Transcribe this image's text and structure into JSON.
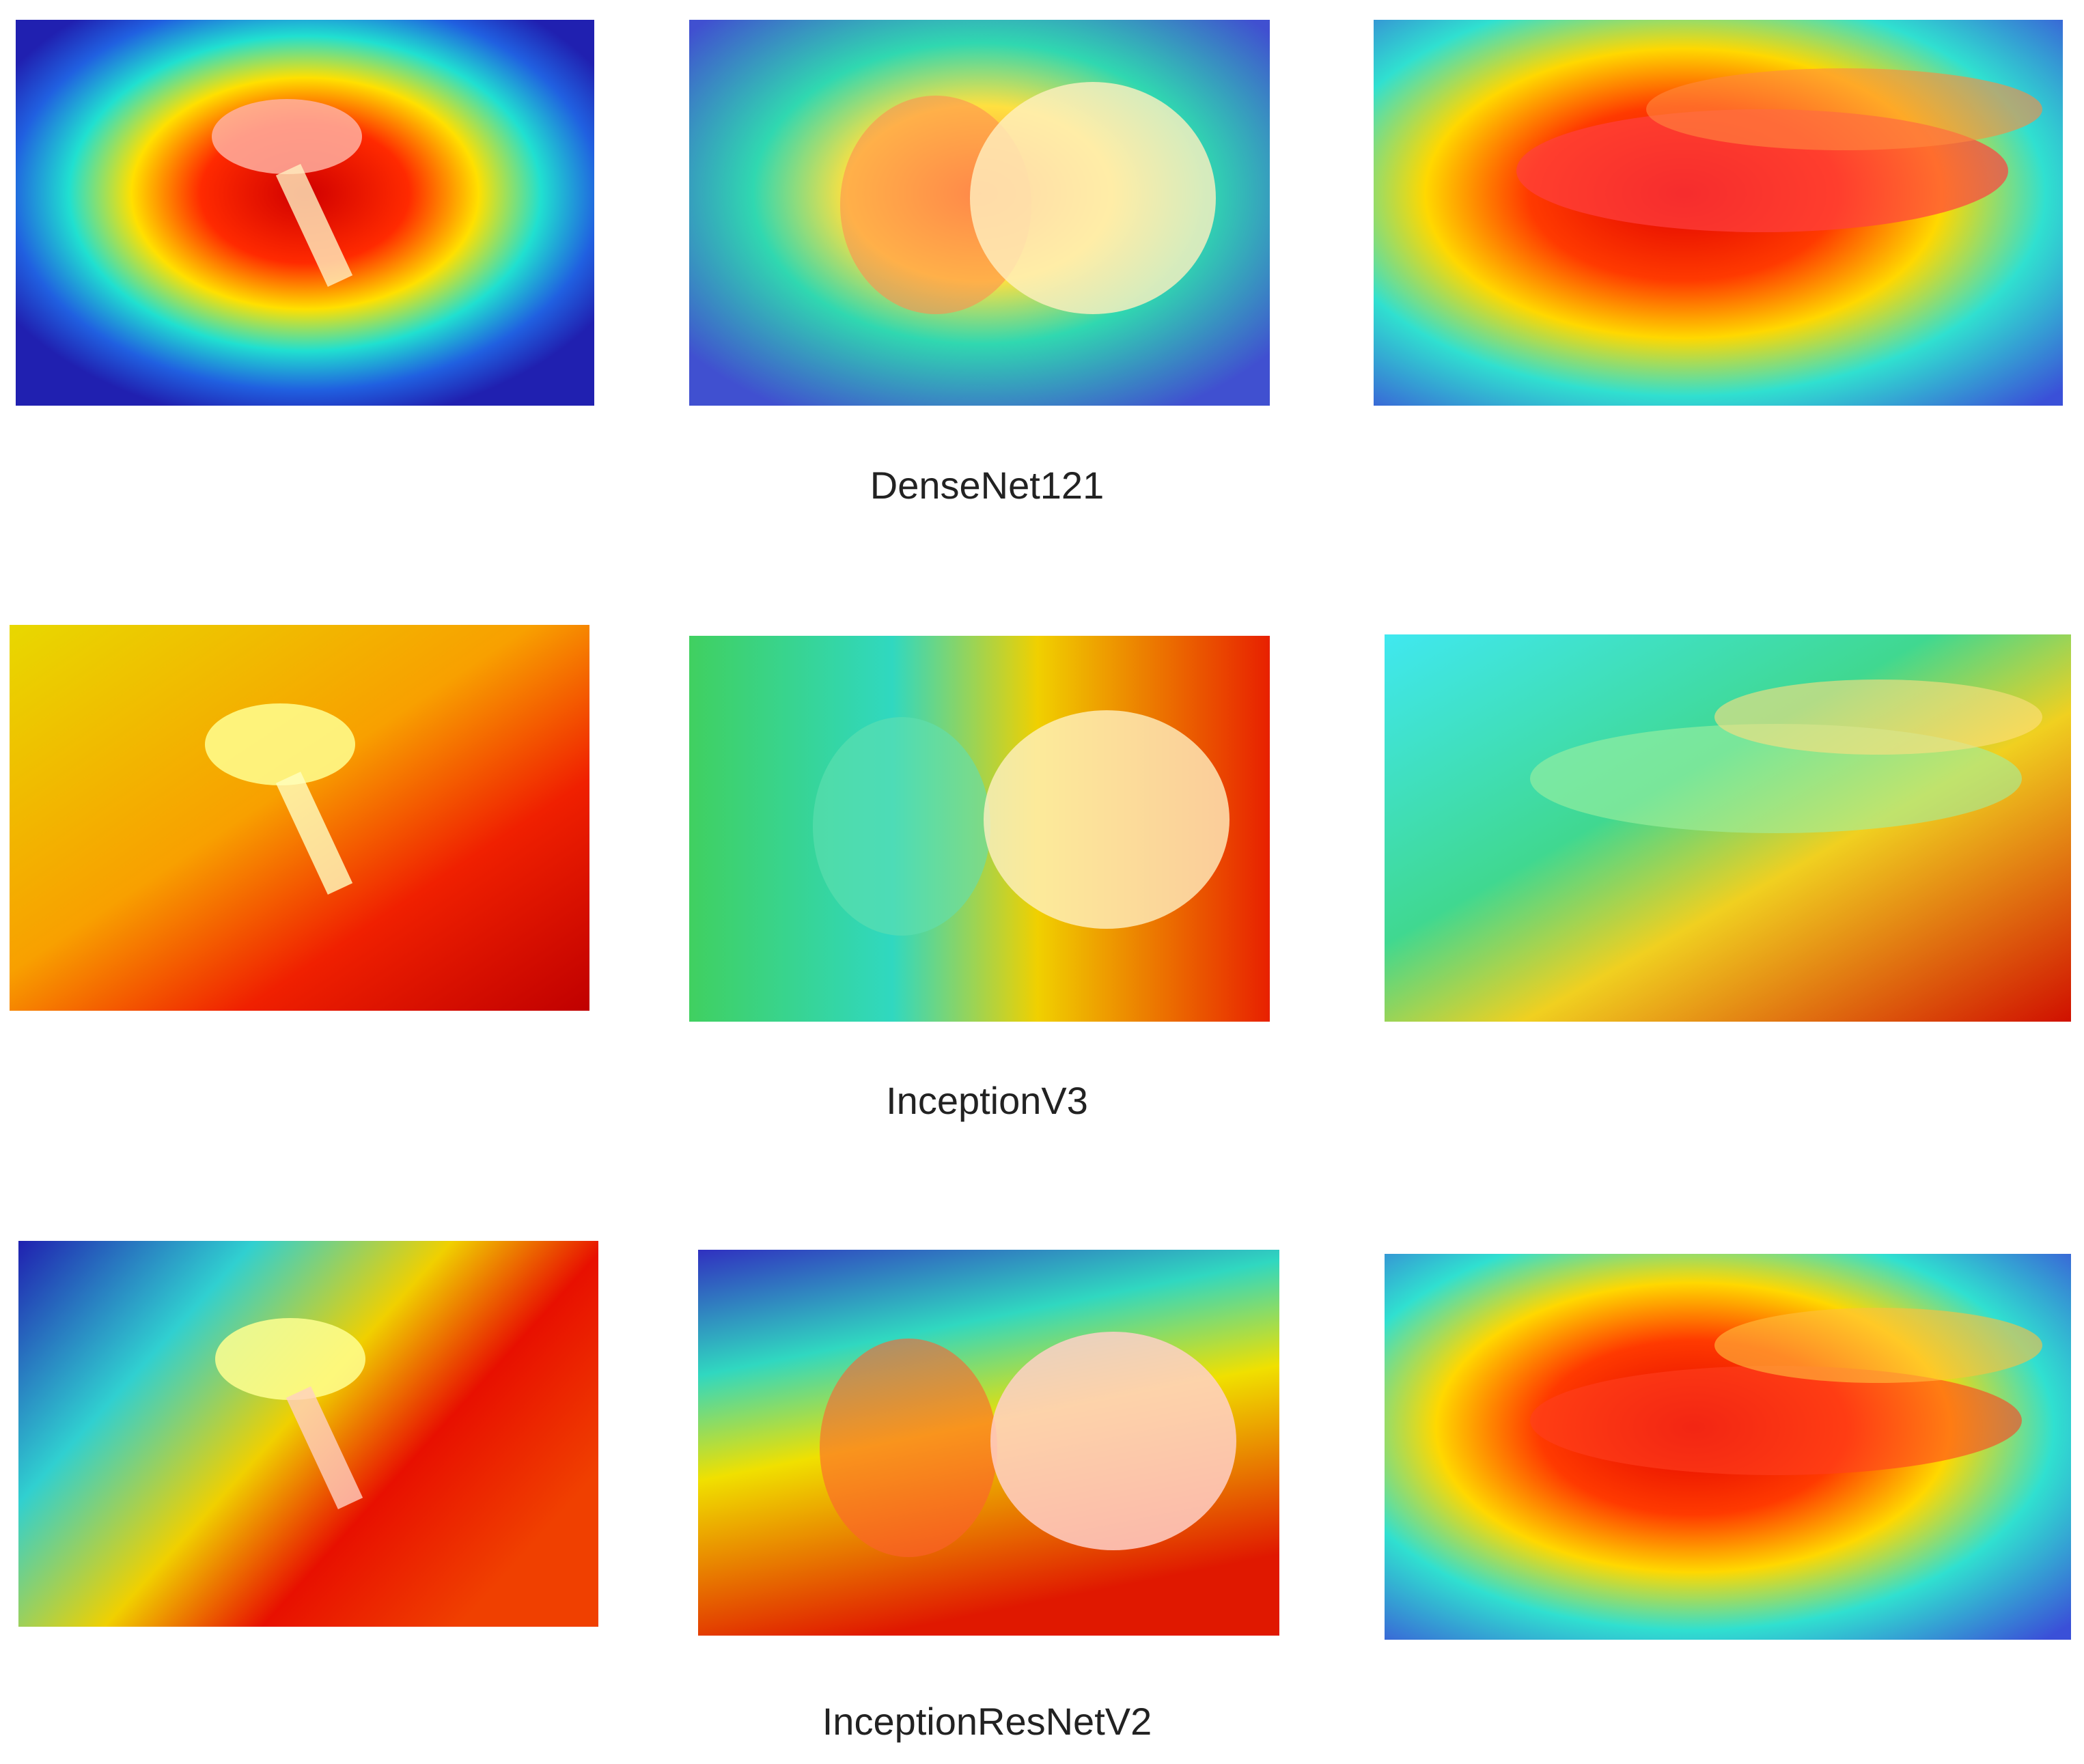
{
  "rows": [
    {
      "label": "DenseNet121"
    },
    {
      "label": "InceptionV3"
    },
    {
      "label": "InceptionResNetV2"
    }
  ]
}
